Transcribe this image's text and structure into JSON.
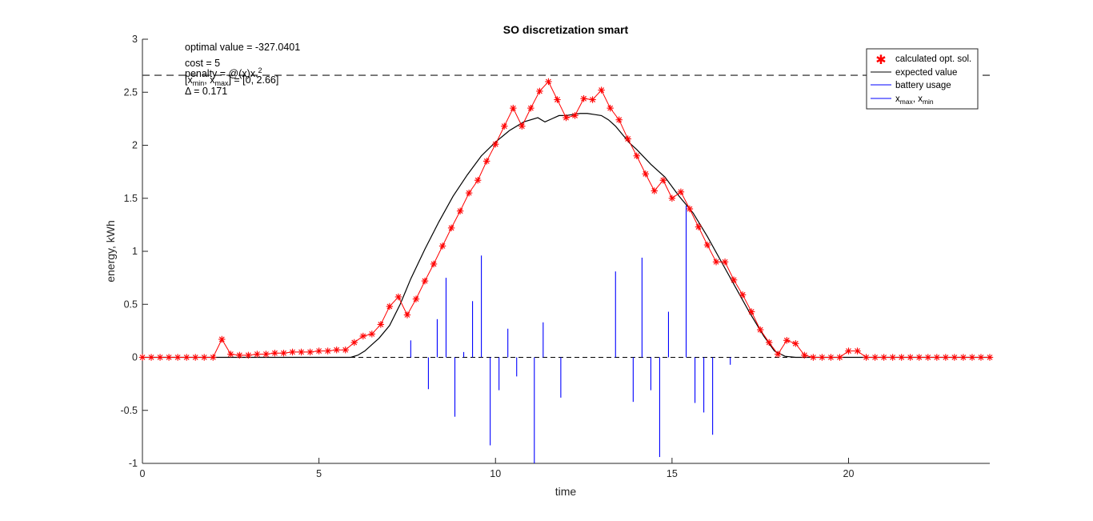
{
  "chart_data": {
    "type": "line",
    "title": "SO discretization smart",
    "xlabel": "time",
    "ylabel": "energy, kWh",
    "xlim": [
      0,
      24
    ],
    "ylim": [
      -1,
      3
    ],
    "xticks": [
      "0",
      "5",
      "10",
      "15",
      "20"
    ],
    "yticks": [
      "-1",
      "-0.5",
      "0",
      "0.5",
      "1",
      "1.5",
      "2",
      "2.5",
      "3"
    ],
    "grid": false,
    "legend_position": "top-right",
    "annotations": [
      "optimal value = -327.0401",
      "cost = 5",
      "penalty = @(x)x.^2",
      "[x_min, x_max] = [0, 2.66]",
      "Δ = 0.171"
    ],
    "legend": {
      "calculated": "calculated opt. sol.",
      "expected": "expected value",
      "battery": "battery usage",
      "bounds": "x_max, x_min"
    },
    "x_max": 2.66,
    "x_min": 0,
    "series": [
      {
        "name": "calculated opt. sol.",
        "color": "#ff0000",
        "marker": "*",
        "x": [
          0,
          0.25,
          0.5,
          0.75,
          1,
          1.25,
          1.5,
          1.75,
          2,
          2.25,
          2.5,
          2.75,
          3,
          3.25,
          3.5,
          3.75,
          4,
          4.25,
          4.5,
          4.75,
          5,
          5.25,
          5.5,
          5.75,
          6,
          6.25,
          6.5,
          6.75,
          7,
          7.25,
          7.5,
          7.75,
          8,
          8.25,
          8.5,
          8.75,
          9,
          9.25,
          9.5,
          9.75,
          10,
          10.25,
          10.5,
          10.75,
          11,
          11.25,
          11.5,
          11.75,
          12,
          12.25,
          12.5,
          12.75,
          13,
          13.25,
          13.5,
          13.75,
          14,
          14.25,
          14.5,
          14.75,
          15,
          15.25,
          15.5,
          15.75,
          16,
          16.25,
          16.5,
          16.75,
          17,
          17.25,
          17.5,
          17.75,
          18,
          18.25,
          18.5,
          18.75,
          19,
          19.25,
          19.5,
          19.75,
          20,
          20.25,
          20.5,
          20.75,
          21,
          21.25,
          21.5,
          21.75,
          22,
          22.25,
          22.5,
          22.75,
          23,
          23.25,
          23.5,
          23.75,
          24
        ],
        "values": [
          0,
          0,
          0,
          0,
          0,
          0,
          0,
          0,
          0,
          0.17,
          0.03,
          0.02,
          0.02,
          0.03,
          0.03,
          0.04,
          0.04,
          0.05,
          0.05,
          0.05,
          0.06,
          0.06,
          0.07,
          0.07,
          0.14,
          0.2,
          0.22,
          0.31,
          0.48,
          0.57,
          0.4,
          0.55,
          0.72,
          0.88,
          1.05,
          1.22,
          1.38,
          1.55,
          1.67,
          1.85,
          2.01,
          2.18,
          2.35,
          2.18,
          2.35,
          2.51,
          2.6,
          2.43,
          2.26,
          2.28,
          2.44,
          2.43,
          2.52,
          2.35,
          2.24,
          2.06,
          1.9,
          1.73,
          1.57,
          1.67,
          1.5,
          1.56,
          1.4,
          1.23,
          1.06,
          0.9,
          0.9,
          0.73,
          0.59,
          0.43,
          0.26,
          0.14,
          0.03,
          0.16,
          0.13,
          0.02,
          0,
          0,
          0,
          0,
          0.06,
          0.06,
          0,
          0,
          0,
          0,
          0,
          0,
          0,
          0,
          0,
          0,
          0,
          0,
          0,
          0,
          0
        ]
      },
      {
        "name": "expected value",
        "color": "#000000",
        "x": [
          0,
          1,
          2,
          3,
          4,
          5,
          5.9,
          6.1,
          6.3,
          6.5,
          6.7,
          7,
          7.3,
          7.6,
          8,
          8.4,
          8.8,
          9.2,
          9.6,
          10,
          10.4,
          10.8,
          11.2,
          11.4,
          11.6,
          11.8,
          12,
          12.2,
          12.4,
          12.6,
          12.8,
          13,
          13.2,
          13.4,
          13.6,
          13.8,
          14,
          14.4,
          14.8,
          15.2,
          15.6,
          16,
          16.4,
          16.8,
          17.2,
          17.6,
          17.9,
          18.2,
          18.5,
          19,
          20,
          21,
          22,
          23,
          24
        ],
        "values": [
          0,
          0,
          0,
          0,
          0,
          0,
          0,
          0.02,
          0.06,
          0.12,
          0.18,
          0.3,
          0.5,
          0.74,
          1.02,
          1.28,
          1.52,
          1.72,
          1.9,
          2.03,
          2.14,
          2.22,
          2.26,
          2.22,
          2.25,
          2.28,
          2.28,
          2.29,
          2.3,
          2.3,
          2.29,
          2.28,
          2.24,
          2.18,
          2.1,
          2.02,
          1.96,
          1.82,
          1.7,
          1.52,
          1.36,
          1.14,
          0.9,
          0.66,
          0.42,
          0.2,
          0.06,
          0.01,
          0,
          0,
          0,
          0,
          0,
          0,
          0
        ]
      },
      {
        "name": "battery usage",
        "color": "#0000ff",
        "x": [
          7.6,
          8.1,
          8.35,
          8.6,
          8.85,
          9.1,
          9.35,
          9.6,
          9.85,
          10.1,
          10.35,
          10.6,
          11.1,
          11.35,
          11.85,
          13.4,
          13.9,
          14.15,
          14.4,
          14.65,
          14.9,
          15.4,
          15.65,
          15.9,
          16.15,
          16.65
        ],
        "values": [
          0.16,
          -0.3,
          0.36,
          0.75,
          -0.56,
          0.05,
          0.53,
          0.96,
          -0.83,
          -0.31,
          0.27,
          -0.18,
          -1.0,
          0.33,
          -0.38,
          0.81,
          -0.42,
          0.94,
          -0.31,
          -0.94,
          0.43,
          1.43,
          -0.43,
          -0.52,
          -0.73,
          -0.07
        ]
      }
    ]
  }
}
